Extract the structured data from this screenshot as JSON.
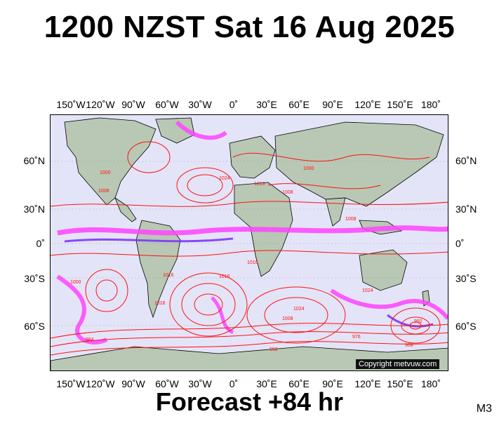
{
  "title": "1200 NZST Sat 16 Aug 2025",
  "subtitle": "Forecast +84 hr",
  "model_code": "M3",
  "copyright": "Copyright metvuw.com",
  "longitude_labels": [
    "150˚W",
    "120˚W",
    "90˚W",
    "60˚W",
    "30˚W",
    "0˚",
    "30˚E",
    "60˚E",
    "90˚E",
    "120˚E",
    "150˚E",
    "180˚"
  ],
  "latitude_labels": [
    "60˚N",
    "30˚N",
    "0˚",
    "30˚S",
    "60˚S"
  ],
  "isobar_labels": [
    "1000",
    "1008",
    "1016",
    "1024",
    "1016",
    "1008",
    "1000",
    "1008",
    "1016",
    "1024",
    "1016",
    "1008",
    "1000",
    "992",
    "984",
    "976",
    "968",
    "992",
    "1016",
    "1024"
  ],
  "colors": {
    "isobar": "#ff1010",
    "ocean": "#e4e4f8",
    "land": "#b8c8b4",
    "precip_light": "#ff44ff",
    "precip_heavy": "#7a2cff",
    "coast": "#000000"
  }
}
